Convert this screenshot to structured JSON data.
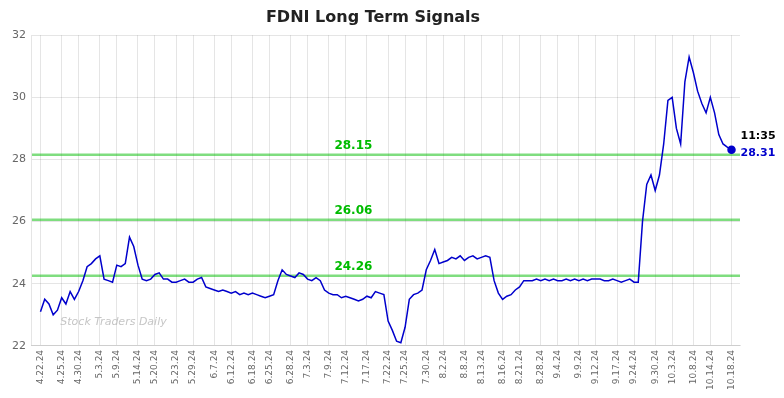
{
  "chart_data": {
    "type": "line",
    "title": "FDNI Long Term Signals",
    "categories": [
      "4.22.24",
      null,
      null,
      null,
      null,
      "4.25.24",
      null,
      null,
      null,
      "4.30.24",
      null,
      null,
      null,
      null,
      "5.3.24",
      null,
      null,
      null,
      "5.9.24",
      null,
      null,
      null,
      null,
      "5.14.24",
      null,
      null,
      null,
      "5.20.24",
      null,
      null,
      null,
      null,
      "5.23.24",
      null,
      null,
      null,
      "5.29.24",
      null,
      null,
      null,
      null,
      "6.7.24",
      null,
      null,
      null,
      "6.12.24",
      null,
      null,
      null,
      null,
      "6.18.24",
      null,
      null,
      null,
      "6.25.24",
      null,
      null,
      null,
      null,
      "6.28.24",
      null,
      null,
      null,
      "7.3.24",
      null,
      null,
      null,
      null,
      "7.9.24",
      null,
      null,
      null,
      "7.12.24",
      null,
      null,
      null,
      null,
      "7.17.24",
      null,
      null,
      null,
      null,
      "7.22.24",
      null,
      null,
      null,
      "7.25.24",
      null,
      null,
      null,
      null,
      "7.30.24",
      null,
      null,
      null,
      "8.2.24",
      null,
      null,
      null,
      null,
      "8.8.24",
      null,
      null,
      null,
      "8.13.24",
      null,
      null,
      null,
      null,
      "8.16.24",
      null,
      null,
      null,
      "8.21.24",
      null,
      null,
      null,
      null,
      "8.28.24",
      null,
      null,
      null,
      "9.4.24",
      null,
      null,
      null,
      null,
      "9.9.24",
      null,
      null,
      null,
      "9.12.24",
      null,
      null,
      null,
      null,
      "9.17.24",
      null,
      null,
      null,
      "9.24.24",
      null,
      null,
      null,
      null,
      "9.30.24",
      null,
      null,
      null,
      "10.3.24",
      null,
      null,
      null,
      null,
      "10.8.24",
      null,
      null,
      null,
      "10.14.24",
      null,
      null,
      null,
      null,
      "10.18.24"
    ],
    "values": [
      23.1,
      23.5,
      23.35,
      23.0,
      23.15,
      23.55,
      23.35,
      23.75,
      23.5,
      23.75,
      24.1,
      24.55,
      24.65,
      24.8,
      24.9,
      24.15,
      24.1,
      24.05,
      24.6,
      24.55,
      24.65,
      25.5,
      25.2,
      24.6,
      24.15,
      24.1,
      24.15,
      24.3,
      24.35,
      24.15,
      24.15,
      24.05,
      24.05,
      24.1,
      24.15,
      24.05,
      24.05,
      24.15,
      24.2,
      23.9,
      23.85,
      23.8,
      23.75,
      23.8,
      23.75,
      23.7,
      23.75,
      23.65,
      23.7,
      23.65,
      23.7,
      23.65,
      23.6,
      23.55,
      23.6,
      23.65,
      24.1,
      24.45,
      24.3,
      24.25,
      24.2,
      24.35,
      24.3,
      24.15,
      24.1,
      24.2,
      24.1,
      23.8,
      23.7,
      23.65,
      23.65,
      23.55,
      23.6,
      23.55,
      23.5,
      23.45,
      23.5,
      23.6,
      23.55,
      23.75,
      23.7,
      23.65,
      22.8,
      22.5,
      22.15,
      22.1,
      22.6,
      23.5,
      23.65,
      23.7,
      23.8,
      24.45,
      24.75,
      25.1,
      24.65,
      24.7,
      24.75,
      24.85,
      24.8,
      24.9,
      24.75,
      24.85,
      24.9,
      24.8,
      24.85,
      24.9,
      24.85,
      24.1,
      23.7,
      23.5,
      23.6,
      23.65,
      23.8,
      23.9,
      24.1,
      24.1,
      24.1,
      24.15,
      24.1,
      24.15,
      24.1,
      24.15,
      24.1,
      24.1,
      24.15,
      24.1,
      24.15,
      24.1,
      24.15,
      24.1,
      24.15,
      24.15,
      24.15,
      24.1,
      24.1,
      24.15,
      24.1,
      24.05,
      24.1,
      24.15,
      24.05,
      24.05,
      26.0,
      27.2,
      27.5,
      27.0,
      27.5,
      28.5,
      29.9,
      30.0,
      29.0,
      28.5,
      30.5,
      31.3,
      30.8,
      30.2,
      29.8,
      29.5,
      30.0,
      29.5,
      28.8,
      28.5,
      28.4,
      28.31
    ],
    "color": "#0000cc",
    "ylim": [
      22,
      32
    ],
    "yticks": [
      22,
      24,
      26,
      28,
      30,
      32
    ],
    "grid": true,
    "hlines": [
      {
        "y": 28.15,
        "label": "28.15",
        "color": "#00bb00"
      },
      {
        "y": 26.06,
        "label": "26.06",
        "color": "#00bb00"
      },
      {
        "y": 24.26,
        "label": "24.26",
        "color": "#00bb00"
      }
    ],
    "annotations": [
      {
        "text": "11:35",
        "color": "#000000"
      },
      {
        "text": "28.31",
        "color": "#0000cc"
      }
    ],
    "watermark": {
      "text": "Stock Traders Daily",
      "color": "#bbbbbb"
    }
  }
}
